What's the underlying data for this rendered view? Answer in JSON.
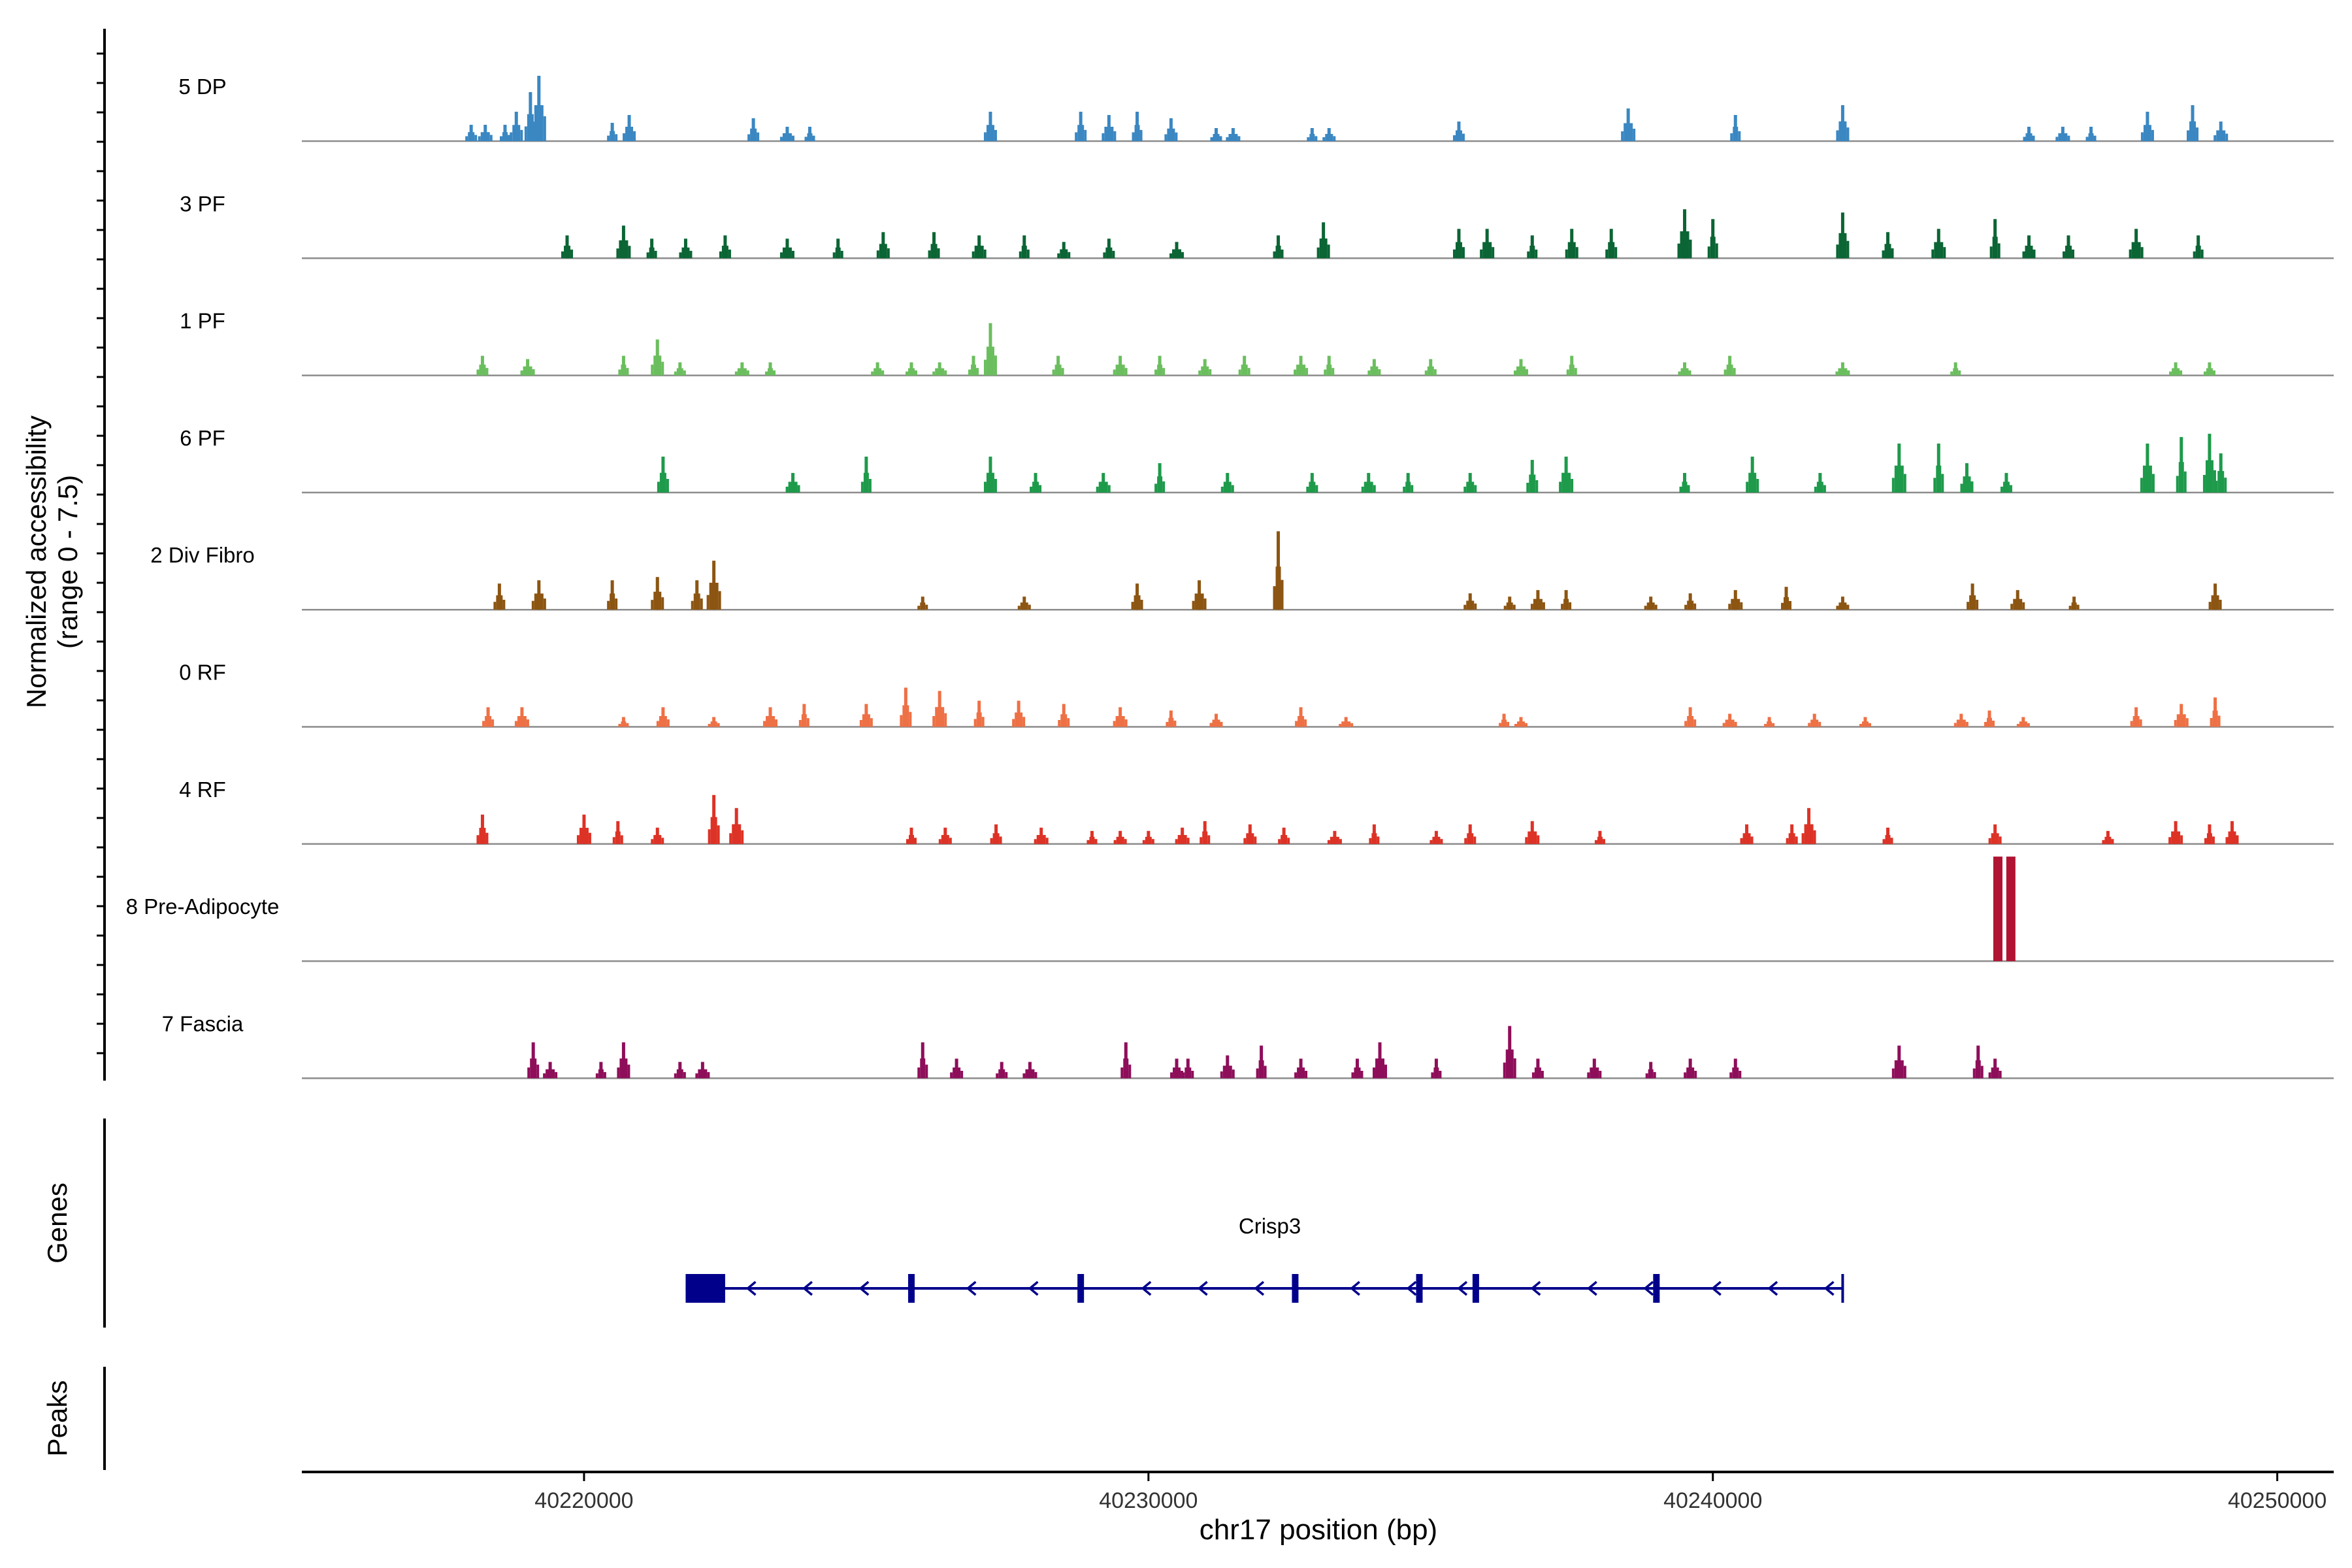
{
  "chart_data": {
    "type": "area",
    "title": "",
    "xlabel": "chr17 position (bp)",
    "ylabel_line1": "Normalized accessibility",
    "ylabel_line2": "(range 0 - 7.5)",
    "yrange": [
      0,
      7.5
    ],
    "xlim": [
      40215000,
      40251000
    ],
    "xticks": [
      40220000,
      40230000,
      40240000,
      40250000
    ],
    "xtick_labels": [
      "40220000",
      "40230000",
      "40240000",
      "40250000"
    ],
    "tracks": [
      {
        "name": "5 DP",
        "color": "#3A87C2",
        "peaks": [
          [
            40218000,
            0.25
          ],
          [
            40218250,
            0.25
          ],
          [
            40218600,
            0.25
          ],
          [
            40218800,
            0.45
          ],
          [
            40219050,
            0.75
          ],
          [
            40219200,
            1.0
          ],
          [
            40220500,
            0.28
          ],
          [
            40220800,
            0.4
          ],
          [
            40223000,
            0.35
          ],
          [
            40223600,
            0.22
          ],
          [
            40224000,
            0.22
          ],
          [
            40227200,
            0.45
          ],
          [
            40228800,
            0.45
          ],
          [
            40229300,
            0.4
          ],
          [
            40229800,
            0.45
          ],
          [
            40230400,
            0.35
          ],
          [
            40231200,
            0.2
          ],
          [
            40231500,
            0.2
          ],
          [
            40232900,
            0.2
          ],
          [
            40233200,
            0.2
          ],
          [
            40235500,
            0.3
          ],
          [
            40238500,
            0.5
          ],
          [
            40240400,
            0.4
          ],
          [
            40242300,
            0.55
          ],
          [
            40245600,
            0.22
          ],
          [
            40246200,
            0.22
          ],
          [
            40246700,
            0.22
          ],
          [
            40247700,
            0.45
          ],
          [
            40248500,
            0.55
          ],
          [
            40249000,
            0.3
          ]
        ]
      },
      {
        "name": "3 PF",
        "color": "#0B6534",
        "peaks": [
          [
            40219700,
            0.35
          ],
          [
            40220700,
            0.5
          ],
          [
            40221200,
            0.3
          ],
          [
            40221800,
            0.3
          ],
          [
            40222500,
            0.35
          ],
          [
            40223600,
            0.3
          ],
          [
            40224500,
            0.3
          ],
          [
            40225300,
            0.4
          ],
          [
            40226200,
            0.4
          ],
          [
            40227000,
            0.35
          ],
          [
            40227800,
            0.35
          ],
          [
            40228500,
            0.25
          ],
          [
            40229300,
            0.3
          ],
          [
            40230500,
            0.25
          ],
          [
            40232300,
            0.35
          ],
          [
            40233100,
            0.55
          ],
          [
            40235500,
            0.45
          ],
          [
            40236000,
            0.45
          ],
          [
            40236800,
            0.35
          ],
          [
            40237500,
            0.45
          ],
          [
            40238200,
            0.45
          ],
          [
            40239500,
            0.75
          ],
          [
            40240000,
            0.6
          ],
          [
            40242300,
            0.7
          ],
          [
            40243100,
            0.4
          ],
          [
            40244000,
            0.45
          ],
          [
            40245000,
            0.6
          ],
          [
            40245600,
            0.35
          ],
          [
            40246300,
            0.35
          ],
          [
            40247500,
            0.45
          ],
          [
            40248600,
            0.35
          ]
        ]
      },
      {
        "name": "1 PF",
        "color": "#6BBE5E",
        "peaks": [
          [
            40218200,
            0.3
          ],
          [
            40219000,
            0.25
          ],
          [
            40220700,
            0.3
          ],
          [
            40221300,
            0.55
          ],
          [
            40221700,
            0.2
          ],
          [
            40222800,
            0.2
          ],
          [
            40223300,
            0.2
          ],
          [
            40225200,
            0.2
          ],
          [
            40225800,
            0.2
          ],
          [
            40226300,
            0.2
          ],
          [
            40226900,
            0.3
          ],
          [
            40227200,
            0.8
          ],
          [
            40228400,
            0.3
          ],
          [
            40229500,
            0.3
          ],
          [
            40230200,
            0.3
          ],
          [
            40231000,
            0.25
          ],
          [
            40231700,
            0.3
          ],
          [
            40232700,
            0.3
          ],
          [
            40233200,
            0.3
          ],
          [
            40234000,
            0.25
          ],
          [
            40235000,
            0.25
          ],
          [
            40236600,
            0.25
          ],
          [
            40237500,
            0.3
          ],
          [
            40239500,
            0.2
          ],
          [
            40240300,
            0.3
          ],
          [
            40242300,
            0.2
          ],
          [
            40244300,
            0.2
          ],
          [
            40248200,
            0.2
          ],
          [
            40248800,
            0.2
          ]
        ]
      },
      {
        "name": "6 PF",
        "color": "#1E9A4B",
        "peaks": [
          [
            40221400,
            0.55
          ],
          [
            40223700,
            0.3
          ],
          [
            40225000,
            0.55
          ],
          [
            40227200,
            0.55
          ],
          [
            40228000,
            0.3
          ],
          [
            40229200,
            0.3
          ],
          [
            40230200,
            0.45
          ],
          [
            40231400,
            0.3
          ],
          [
            40232900,
            0.3
          ],
          [
            40233900,
            0.3
          ],
          [
            40234600,
            0.3
          ],
          [
            40235700,
            0.3
          ],
          [
            40236800,
            0.5
          ],
          [
            40237400,
            0.55
          ],
          [
            40239500,
            0.3
          ],
          [
            40240700,
            0.55
          ],
          [
            40241900,
            0.3
          ],
          [
            40243300,
            0.75
          ],
          [
            40244000,
            0.75
          ],
          [
            40244500,
            0.45
          ],
          [
            40245200,
            0.3
          ],
          [
            40247700,
            0.75
          ],
          [
            40248300,
            0.85
          ],
          [
            40248800,
            0.9
          ],
          [
            40249000,
            0.6
          ]
        ]
      },
      {
        "name": "2 Div Fibro",
        "color": "#8C5512",
        "peaks": [
          [
            40218500,
            0.4
          ],
          [
            40219200,
            0.45
          ],
          [
            40220500,
            0.45
          ],
          [
            40221300,
            0.5
          ],
          [
            40222000,
            0.45
          ],
          [
            40222300,
            0.75
          ],
          [
            40226000,
            0.2
          ],
          [
            40227800,
            0.2
          ],
          [
            40229800,
            0.4
          ],
          [
            40230900,
            0.45
          ],
          [
            40232300,
            1.2
          ],
          [
            40235700,
            0.25
          ],
          [
            40236400,
            0.2
          ],
          [
            40236900,
            0.3
          ],
          [
            40237400,
            0.3
          ],
          [
            40238900,
            0.2
          ],
          [
            40239600,
            0.25
          ],
          [
            40240400,
            0.3
          ],
          [
            40241300,
            0.35
          ],
          [
            40242300,
            0.2
          ],
          [
            40244600,
            0.4
          ],
          [
            40245400,
            0.3
          ],
          [
            40246400,
            0.2
          ],
          [
            40248900,
            0.4
          ]
        ]
      },
      {
        "name": "0 RF",
        "color": "#EE7045",
        "peaks": [
          [
            40218300,
            0.3
          ],
          [
            40218900,
            0.3
          ],
          [
            40220700,
            0.15
          ],
          [
            40221400,
            0.3
          ],
          [
            40222300,
            0.15
          ],
          [
            40223300,
            0.3
          ],
          [
            40223900,
            0.35
          ],
          [
            40225000,
            0.35
          ],
          [
            40225700,
            0.6
          ],
          [
            40226300,
            0.55
          ],
          [
            40227000,
            0.4
          ],
          [
            40227700,
            0.4
          ],
          [
            40228500,
            0.35
          ],
          [
            40229500,
            0.3
          ],
          [
            40230400,
            0.25
          ],
          [
            40231200,
            0.2
          ],
          [
            40232700,
            0.3
          ],
          [
            40233500,
            0.15
          ],
          [
            40236300,
            0.2
          ],
          [
            40236600,
            0.15
          ],
          [
            40239600,
            0.3
          ],
          [
            40240300,
            0.2
          ],
          [
            40241000,
            0.15
          ],
          [
            40241800,
            0.2
          ],
          [
            40242700,
            0.15
          ],
          [
            40244400,
            0.2
          ],
          [
            40244900,
            0.25
          ],
          [
            40245500,
            0.15
          ],
          [
            40247500,
            0.3
          ],
          [
            40248300,
            0.35
          ],
          [
            40248900,
            0.45
          ]
        ]
      },
      {
        "name": "4 RF",
        "color": "#DD3226",
        "peaks": [
          [
            40218200,
            0.45
          ],
          [
            40220000,
            0.45
          ],
          [
            40220600,
            0.35
          ],
          [
            40221300,
            0.25
          ],
          [
            40222300,
            0.75
          ],
          [
            40222700,
            0.55
          ],
          [
            40225800,
            0.25
          ],
          [
            40226400,
            0.25
          ],
          [
            40227300,
            0.3
          ],
          [
            40228100,
            0.25
          ],
          [
            40229000,
            0.2
          ],
          [
            40229500,
            0.2
          ],
          [
            40230000,
            0.2
          ],
          [
            40230600,
            0.25
          ],
          [
            40231000,
            0.35
          ],
          [
            40231800,
            0.3
          ],
          [
            40232400,
            0.25
          ],
          [
            40233300,
            0.2
          ],
          [
            40234000,
            0.3
          ],
          [
            40235100,
            0.2
          ],
          [
            40235700,
            0.3
          ],
          [
            40236800,
            0.35
          ],
          [
            40238000,
            0.2
          ],
          [
            40240600,
            0.3
          ],
          [
            40241400,
            0.3
          ],
          [
            40241700,
            0.55
          ],
          [
            40243100,
            0.25
          ],
          [
            40245000,
            0.3
          ],
          [
            40247000,
            0.2
          ],
          [
            40248200,
            0.35
          ],
          [
            40248800,
            0.3
          ],
          [
            40249200,
            0.35
          ]
        ]
      },
      {
        "name": "8 Pre-Adipocyte",
        "color": "#B01432",
        "peaks": [
          [
            40245050,
            1.6
          ],
          [
            40245280,
            1.6
          ]
        ]
      },
      {
        "name": "7 Fascia",
        "color": "#8E0E5A",
        "peaks": [
          [
            40219100,
            0.55
          ],
          [
            40219400,
            0.25
          ],
          [
            40220300,
            0.25
          ],
          [
            40220700,
            0.55
          ],
          [
            40221700,
            0.25
          ],
          [
            40222100,
            0.25
          ],
          [
            40226000,
            0.55
          ],
          [
            40226600,
            0.3
          ],
          [
            40227400,
            0.25
          ],
          [
            40227900,
            0.25
          ],
          [
            40229600,
            0.55
          ],
          [
            40230500,
            0.3
          ],
          [
            40230700,
            0.3
          ],
          [
            40231400,
            0.35
          ],
          [
            40232000,
            0.5
          ],
          [
            40232700,
            0.3
          ],
          [
            40233700,
            0.3
          ],
          [
            40234100,
            0.55
          ],
          [
            40235100,
            0.3
          ],
          [
            40236400,
            0.8
          ],
          [
            40236900,
            0.3
          ],
          [
            40237900,
            0.3
          ],
          [
            40238900,
            0.25
          ],
          [
            40239600,
            0.3
          ],
          [
            40240400,
            0.3
          ],
          [
            40243300,
            0.5
          ],
          [
            40244700,
            0.5
          ],
          [
            40245000,
            0.3
          ]
        ]
      }
    ],
    "genes_label": "Genes",
    "peaks_label": "Peaks",
    "gene": {
      "name": "Crisp3",
      "color": "#00008B",
      "start": 40221800,
      "end": 40242300,
      "strand": "-",
      "utr_block": [
        40221800,
        40222500
      ],
      "exons": [
        40225800,
        40228800,
        40232600,
        40234800,
        40235800,
        40239000
      ],
      "arrows": [
        40222900,
        40223900,
        40224900,
        40226800,
        40227900,
        40229900,
        40230900,
        40231900,
        40233600,
        40234600,
        40235500,
        40236800,
        40237800,
        40238800,
        40240000,
        40241000,
        40242000
      ]
    }
  }
}
